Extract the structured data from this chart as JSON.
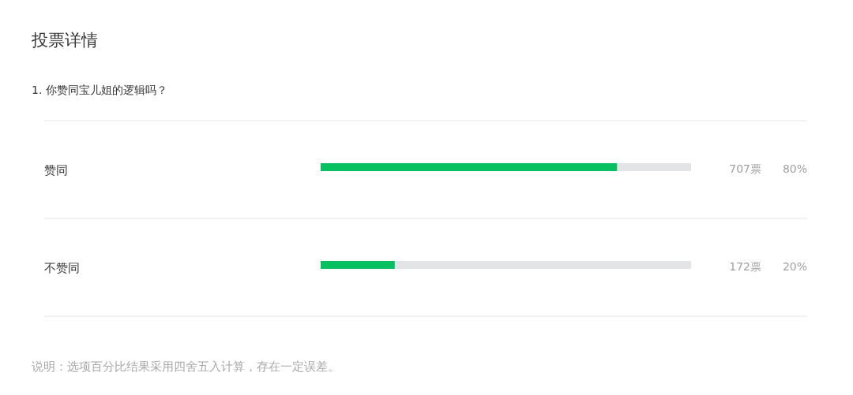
{
  "chart_data": {
    "type": "bar",
    "orientation": "horizontal",
    "title": "投票详情",
    "subtitle": "1. 你赞同宝儿姐的逻辑吗？",
    "categories": [
      "赞同",
      "不赞同"
    ],
    "values": [
      80,
      20
    ],
    "color": "#07c160",
    "value_labels": [
      "80%",
      "20%"
    ],
    "xlim": [
      0,
      100
    ],
    "tick_labels": "y",
    "annotations": [
      "707票",
      "172票",
      "说明：选项百分比结果采用四舍五入计算，存在一定误差。"
    ]
  }
}
